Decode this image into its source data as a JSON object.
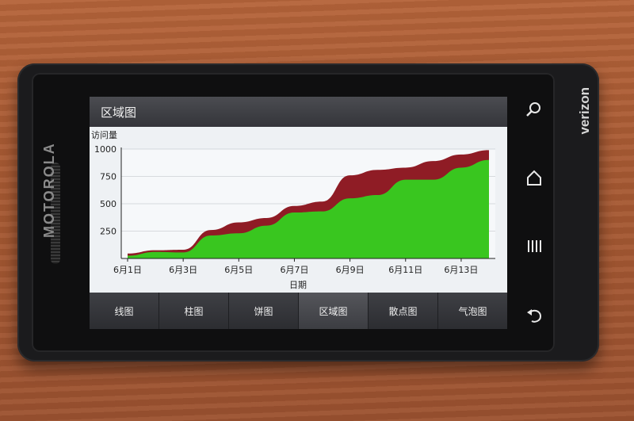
{
  "device": {
    "brand": "MOTOROLA",
    "carrier": "verizon"
  },
  "screen": {
    "title": "区域图"
  },
  "tabs": [
    {
      "label": "线图"
    },
    {
      "label": "柱图"
    },
    {
      "label": "饼图"
    },
    {
      "label": "区域图"
    },
    {
      "label": "散点图"
    },
    {
      "label": "气泡图"
    }
  ],
  "active_tab": 3,
  "chart_data": {
    "type": "area",
    "ylabel": "访问量",
    "xlabel": "日期",
    "ylim": [
      0,
      1000
    ],
    "yticks": [
      "1000",
      "750",
      "500",
      "250"
    ],
    "x_tick_labels": [
      "6月1日",
      "6月3日",
      "6月5日",
      "6月7日",
      "6月9日",
      "6月11日",
      "6月13日"
    ],
    "x": [
      1,
      2,
      3,
      4,
      5,
      6,
      7,
      8,
      9,
      10,
      11,
      12,
      13,
      14
    ],
    "series": [
      {
        "color": "#39c61f",
        "values": [
          25,
          60,
          55,
          210,
          230,
          300,
          420,
          430,
          550,
          580,
          720,
          720,
          830,
          900
        ]
      },
      {
        "color": "#8f1c25",
        "values": [
          45,
          75,
          80,
          260,
          330,
          370,
          480,
          520,
          760,
          810,
          830,
          890,
          950,
          990
        ]
      }
    ]
  }
}
